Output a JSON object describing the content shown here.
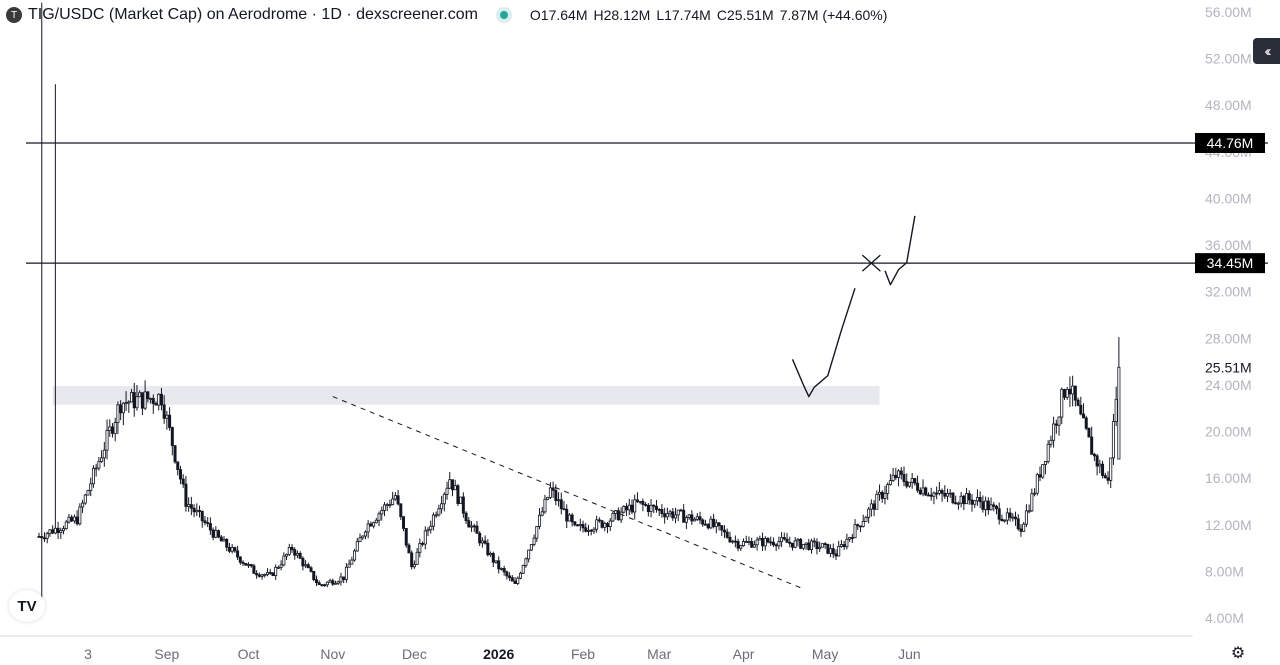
{
  "legend": {
    "token_icon": "T",
    "title": "TIG/USDC (Market Cap) on Aerodrome · 1D · dexscreener.com",
    "ohlc": {
      "open": "O17.64M",
      "high": "H28.12M",
      "low": "L17.74M",
      "close": "C25.51M",
      "change": "7.87M (+44.60%)"
    }
  },
  "buttons": {
    "collapse_icon": "double-chevron-left-icon",
    "settings_icon": "gear-icon"
  },
  "logo": "TV",
  "colors": {
    "candle": "#131722",
    "background": "#ffffff",
    "axis_text": "#b2b5be",
    "label_bg": "#000000",
    "label_text": "#ffffff",
    "zone": "#e8e9ef"
  },
  "chart_data": {
    "type": "candlestick",
    "ylim": [
      3.0,
      57.0
    ],
    "y_tick_labels": [
      "56.00M",
      "52.00M",
      "48.00M",
      "44.00M",
      "40.00M",
      "36.00M",
      "32.00M",
      "28.00M",
      "24.00M",
      "20.00M",
      "16.00M",
      "12.00M",
      "8.00M",
      "4.00M"
    ],
    "y_tick_values": [
      56,
      52,
      48,
      44,
      40,
      36,
      32,
      28,
      24,
      20,
      16,
      12,
      8,
      4
    ],
    "x_tick_labels": [
      "3",
      "Sep",
      "Oct",
      "Nov",
      "Dec",
      "2026",
      "Feb",
      "Mar",
      "Apr",
      "May",
      "Jun"
    ],
    "x_tick_dates": [
      "2025-08-03",
      "2025-09-01",
      "2025-10-01",
      "2025-11-01",
      "2025-12-01",
      "2026-01-01",
      "2026-02-01",
      "2026-03-01",
      "2026-04-01",
      "2026-05-01",
      "2026-06-01"
    ],
    "x_start": "2025-07-16",
    "x_end": "2026-06-01",
    "series_key": [
      [
        4,
        11.5
      ],
      [
        16,
        22.6
      ],
      [
        51,
        24.4
      ],
      [
        91,
        22.8
      ],
      [
        106,
        19.3
      ],
      [
        139,
        14.2
      ],
      [
        173,
        8.4
      ],
      [
        180,
        10.4
      ],
      [
        194,
        16.0
      ],
      [
        207,
        12.6
      ],
      [
        238,
        10.5
      ],
      [
        251,
        15.4
      ],
      [
        268,
        12.4
      ],
      [
        289,
        11.8
      ],
      [
        312,
        14.2
      ],
      [
        334,
        12.6
      ],
      [
        355,
        12.3
      ],
      [
        365,
        14.6
      ],
      [
        382,
        12.7
      ],
      [
        396,
        13.1
      ],
      [
        412,
        11.6
      ],
      [
        438,
        14.2
      ],
      [
        449,
        11.3
      ],
      [
        456,
        10.1
      ],
      [
        464,
        11.2
      ],
      [
        477,
        10.2
      ],
      [
        494,
        9.0
      ],
      [
        499,
        8.5
      ],
      [
        516,
        8.2
      ],
      [
        531,
        9.4
      ],
      [
        565,
        11.5
      ],
      [
        580,
        15.8
      ]
    ],
    "daily_values_at_key_days": [
      [
        0,
        11.0
      ],
      [
        14,
        12.5
      ],
      [
        30,
        22.5
      ],
      [
        45,
        23.0
      ],
      [
        54,
        14.0
      ],
      [
        66,
        10.8
      ],
      [
        79,
        8.0
      ],
      [
        85,
        7.6
      ],
      [
        93,
        10.0
      ],
      [
        103,
        6.8
      ],
      [
        112,
        7.5
      ],
      [
        120,
        11.8
      ],
      [
        131,
        14.5
      ],
      [
        137,
        8.4
      ],
      [
        151,
        16.0
      ],
      [
        158,
        12.2
      ],
      [
        168,
        8.6
      ],
      [
        175,
        6.8
      ],
      [
        188,
        15.0
      ],
      [
        197,
        11.6
      ],
      [
        208,
        12.2
      ],
      [
        220,
        13.8
      ],
      [
        230,
        13.1
      ],
      [
        246,
        12.2
      ],
      [
        257,
        10.4
      ],
      [
        271,
        10.6
      ],
      [
        288,
        10.1
      ],
      [
        293,
        9.5
      ],
      [
        315,
        16.2
      ],
      [
        330,
        14.6
      ],
      [
        346,
        14.0
      ],
      [
        361,
        11.8
      ],
      [
        366,
        15.0
      ],
      [
        378,
        24.3
      ],
      [
        388,
        17.8
      ],
      [
        393,
        15.6
      ],
      [
        397,
        25.5
      ]
    ],
    "ohlc_last": {
      "open": 17.64,
      "high": 28.12,
      "low": 17.74,
      "close": 25.51,
      "change": 7.87,
      "change_pct": 44.6
    },
    "horizontal_lines": [
      {
        "value": 44.76,
        "label": "44.76M"
      },
      {
        "value": 34.45,
        "label": "34.45M"
      }
    ],
    "current_price_label": {
      "value": 25.51,
      "label": "25.51M"
    },
    "support_zone": {
      "low": 22.3,
      "high": 23.9,
      "from": "2025-07-21",
      "to": "2026-05-21"
    },
    "trendline": {
      "from": [
        "2025-11-01",
        23.0
      ],
      "to": [
        "2026-04-23",
        6.5
      ],
      "style": "dashed"
    },
    "projection_path": [
      [
        "2026-04-19",
        26.2
      ],
      [
        "2026-04-23",
        24.0
      ],
      [
        "2026-04-25",
        23.0
      ],
      [
        "2026-04-27",
        23.8
      ],
      [
        "2026-05-02",
        24.8
      ],
      [
        "2026-05-07",
        28.7
      ],
      [
        "2026-05-12",
        32.3
      ]
    ],
    "projection_path_2": [
      [
        "2026-05-23",
        33.8
      ],
      [
        "2026-05-25",
        32.6
      ],
      [
        "2026-05-28",
        33.9
      ],
      [
        "2026-05-31",
        34.5
      ],
      [
        "2026-06-03",
        38.5
      ]
    ],
    "x_marker": {
      "date": "2026-05-18",
      "value": 34.45
    }
  }
}
